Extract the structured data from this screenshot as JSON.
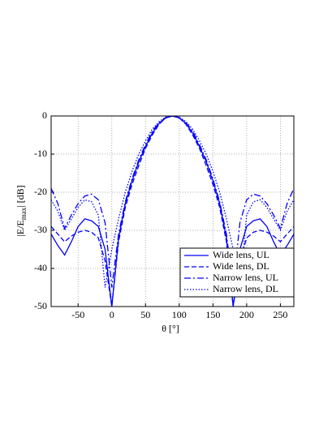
{
  "chart_data": {
    "type": "line",
    "x_label": "θ [°]",
    "y_label": {
      "main": "|E/E",
      "sub": "max",
      "end": "| [dB]"
    },
    "x": [
      -90,
      -80,
      -70,
      -60,
      -50,
      -40,
      -30,
      -20,
      -10,
      0,
      10,
      20,
      30,
      40,
      50,
      60,
      70,
      80,
      90,
      100,
      110,
      120,
      130,
      140,
      150,
      160,
      170,
      180,
      190,
      200,
      210,
      220,
      230,
      240,
      250,
      260,
      270
    ],
    "series": [
      {
        "name": "Wide lens, UL",
        "color": "#0000ff",
        "dash": "solid",
        "values": [
          -31,
          -34,
          -36.5,
          -33,
          -29,
          -27,
          -27.5,
          -29,
          -35,
          -50,
          -32,
          -23,
          -17,
          -12,
          -8,
          -4.5,
          -2,
          -0.5,
          0,
          -0.5,
          -2,
          -4.5,
          -8,
          -12,
          -17,
          -23,
          -32,
          -50,
          -35,
          -29,
          -27.5,
          -27,
          -29,
          -33,
          -36.5,
          -34,
          -31
        ]
      },
      {
        "name": "Wide lens, DL",
        "color": "#0000ff",
        "dash": "dashed",
        "values": [
          -29,
          -31,
          -33,
          -31.5,
          -30.5,
          -30,
          -30.5,
          -32,
          -38,
          -50,
          -33,
          -24,
          -18,
          -13,
          -8.5,
          -5,
          -2.2,
          -0.5,
          0,
          -0.5,
          -2.2,
          -5,
          -8.5,
          -13,
          -18,
          -24,
          -33,
          -50,
          -38,
          -32,
          -30.5,
          -30,
          -30.5,
          -31.5,
          -33,
          -31,
          -29
        ]
      },
      {
        "name": "Narrow lens, UL",
        "color": "#0000ff",
        "dash": "dashdot",
        "values": [
          -19,
          -23,
          -29.5,
          -26,
          -23,
          -21,
          -20.5,
          -22,
          -28,
          -45,
          -31,
          -22.5,
          -16.5,
          -11.5,
          -7.5,
          -4,
          -1.8,
          -0.4,
          0,
          -0.4,
          -1.8,
          -4,
          -7.5,
          -11.5,
          -16.5,
          -22.5,
          -31,
          -45,
          -28,
          -22,
          -20.5,
          -21,
          -23,
          -26,
          -29.5,
          -23,
          -19
        ]
      },
      {
        "name": "Narrow lens, DL",
        "color": "#0000ff",
        "dash": "dotted",
        "values": [
          -22,
          -25,
          -30,
          -27,
          -24,
          -22,
          -22.5,
          -26,
          -45,
          -35,
          -27,
          -20,
          -14.5,
          -10,
          -6.5,
          -3.5,
          -1.5,
          -0.3,
          0,
          -0.3,
          -1.5,
          -3.5,
          -6.5,
          -10,
          -14.5,
          -20,
          -27,
          -35,
          -45,
          -26,
          -22.5,
          -22,
          -24,
          -27,
          -30,
          -25,
          -22
        ]
      }
    ],
    "xlim": [
      -90,
      270
    ],
    "xticks": [
      -50,
      0,
      50,
      100,
      150,
      200,
      250
    ],
    "ylim": [
      -50,
      0
    ],
    "yticks": [
      0,
      -10,
      -20,
      -30,
      -40,
      -50
    ],
    "grid": true,
    "legend": "lower right"
  }
}
